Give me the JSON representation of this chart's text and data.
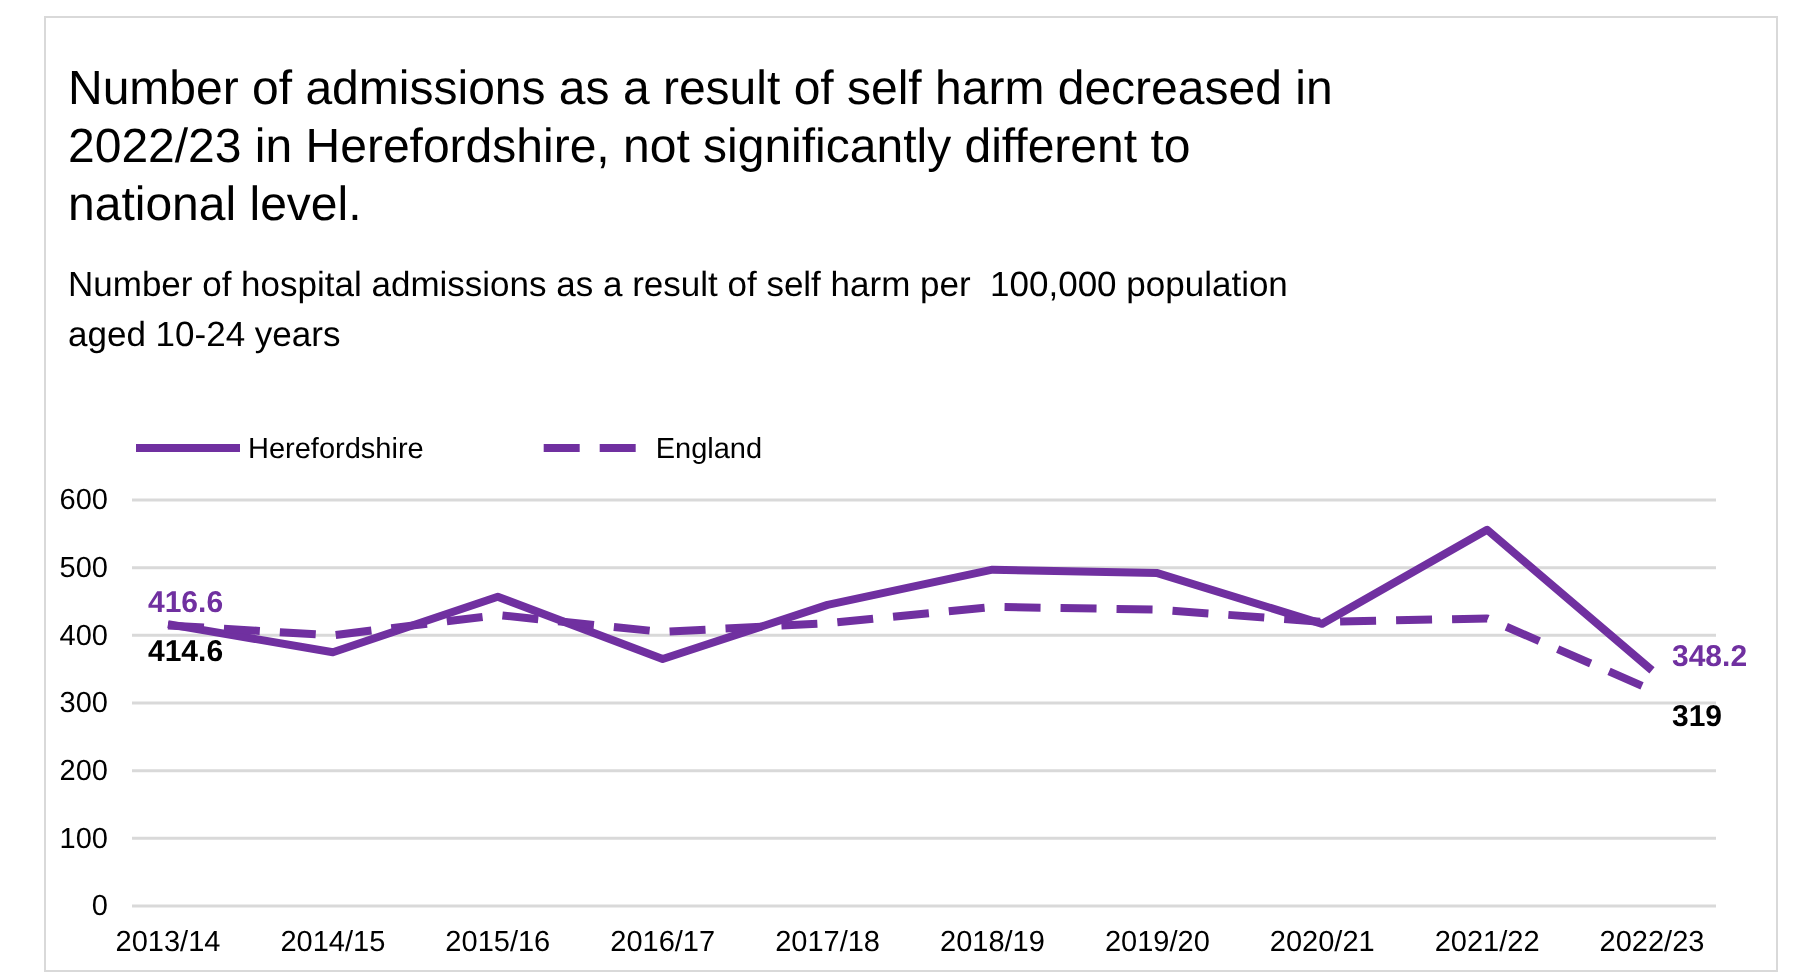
{
  "chart_data": {
    "type": "line",
    "title": "Number of admissions as a result of self harm decreased in 2022/23 in Herefordshire, not significantly different to national level.",
    "subtitle": "Number of hospital admissions as a result of self harm per  100,000 population  aged 10-24 years",
    "categories": [
      "2013/14",
      "2014/15",
      "2015/16",
      "2016/17",
      "2017/18",
      "2018/19",
      "2019/20",
      "2020/21",
      "2021/22",
      "2022/23"
    ],
    "series": [
      {
        "name": "Herefordshire",
        "color": "#7030a0",
        "line_style": "solid",
        "values": [
          416.6,
          375,
          457,
          365,
          445,
          497,
          492,
          417,
          556,
          348.2
        ],
        "value_labels": [
          "416.6",
          null,
          null,
          null,
          null,
          null,
          null,
          null,
          null,
          "348.2"
        ]
      },
      {
        "name": "England",
        "color": "#7030a0",
        "line_style": "dashed",
        "values": [
          414.6,
          400,
          430,
          405,
          418,
          442,
          438,
          420,
          425,
          319
        ],
        "value_labels": [
          "414.6",
          null,
          null,
          null,
          null,
          null,
          null,
          null,
          null,
          "319"
        ]
      }
    ],
    "ylim": [
      0,
      600
    ],
    "yticks": [
      0,
      100,
      200,
      300,
      400,
      500,
      600
    ],
    "grid": "y",
    "legend": "top left",
    "marker": "none"
  }
}
